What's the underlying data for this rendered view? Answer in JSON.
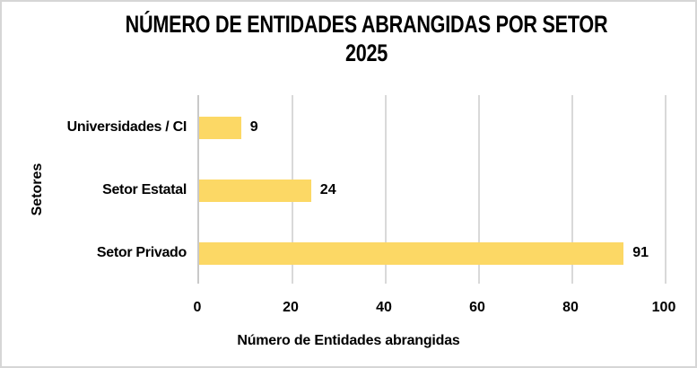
{
  "chart_data": {
    "type": "bar",
    "orientation": "horizontal",
    "title": "NÚMERO DE ENTIDADES ABRANGIDAS POR SETOR",
    "subtitle": "2025",
    "categories": [
      "Universidades / CI",
      "Setor Estatal",
      "Setor Privado"
    ],
    "values": [
      9,
      24,
      91
    ],
    "data_labels": [
      "9",
      "24",
      "91"
    ],
    "xlabel": "Número de Entidades abrangidas",
    "ylabel": "Setores",
    "xlim": [
      0,
      100
    ],
    "xticks": [
      "0",
      "20",
      "40",
      "60",
      "80",
      "100"
    ],
    "xtick_values": [
      0,
      20,
      40,
      60,
      80,
      100
    ],
    "grid": true,
    "legend": false,
    "colors": {
      "bar": "#FCD865",
      "gridline": "#D9D9D9",
      "axis_line": "#C9C9C9",
      "text": "#000000",
      "border": "#D6D6D6",
      "background": "#FFFFFF"
    }
  }
}
